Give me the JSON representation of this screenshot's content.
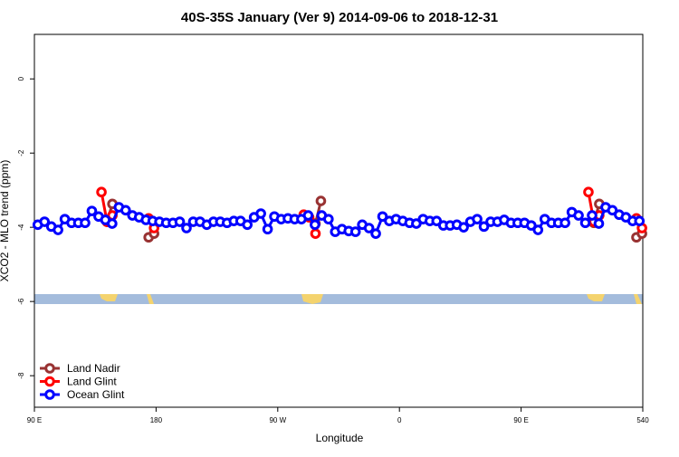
{
  "chart_data": {
    "type": "line",
    "title": "40S-35S January (Ver 9)   2014-09-06 to 2018-12-31",
    "x_label": "Longitude",
    "y_label": "XCO2 - MLO trend (ppm)",
    "xlim": [
      90,
      540
    ],
    "ylim": [
      -8.85,
      1.2
    ],
    "xticks": [
      {
        "value": 90,
        "label": "90 E"
      },
      180,
      {
        "value": 270,
        "label": "90 W"
      },
      {
        "value": 360,
        "label": "0"
      },
      {
        "value": 450,
        "label": "90 E"
      },
      540
    ],
    "yticks": [
      0,
      -2,
      -4,
      -6,
      -8
    ],
    "legend": "bottom-left",
    "series": [
      {
        "name": "Land Nadir",
        "color": "#993333",
        "x": [
          143.7,
          147.7,
          161,
          174.5,
          178.5,
          230,
          297.9,
          301.9,
          400,
          503.8,
          507.8,
          520,
          535.3,
          539.4
        ],
        "values": [
          -3.85,
          -3.37,
          null,
          -4.27,
          -4.17,
          null,
          -3.9,
          -3.29,
          null,
          -3.88,
          -3.37,
          null,
          -4.27,
          -4.17
        ]
      },
      {
        "name": "Land Glint",
        "color": "#ff0000",
        "x": [
          139.6,
          143.7,
          147.7,
          161,
          174.5,
          178.5,
          230,
          289.2,
          293.2,
          297.9,
          400,
          499.8,
          503.8,
          507.8,
          520,
          535.3,
          539.4
        ],
        "values": [
          -3.05,
          -3.85,
          -3.68,
          null,
          -3.76,
          -4.02,
          null,
          -3.66,
          -3.73,
          -4.17,
          null,
          -3.05,
          -3.85,
          -3.68,
          null,
          -3.76,
          -4.02
        ]
      },
      {
        "name": "Ocean Glint",
        "color": "#0000ff",
        "x": [
          92.5,
          97.5,
          102.5,
          107.5,
          112.5,
          117.5,
          122.5,
          127.5,
          132.5,
          137.5,
          142.5,
          147.5,
          152.5,
          157.5,
          162.5,
          167.5,
          172.5,
          177.5,
          182.5,
          187.5,
          192.5,
          197.5,
          202.5,
          207.5,
          212.5,
          217.5,
          222.5,
          227.5,
          232.5,
          237.5,
          242.5,
          247.5,
          252.5,
          257.5,
          262.5,
          267.5,
          272.5,
          277.5,
          282.5,
          287.5,
          292.5,
          297.5,
          302.5,
          307.5,
          312.5,
          317.5,
          322.5,
          327.5,
          332.5,
          337.5,
          342.5,
          347.5,
          352.5,
          357.5,
          362.5,
          367.5,
          372.5,
          377.5,
          382.5,
          387.5,
          392.5,
          397.5,
          402.5,
          407.5,
          412.5,
          417.5,
          422.5,
          427.5,
          432.5,
          437.5,
          442.5,
          447.5,
          452.5,
          457.5,
          462.5,
          467.5,
          472.5,
          477.5,
          482.5,
          487.5,
          492.5,
          497.5,
          502.5,
          507.5,
          512.5,
          517.5,
          522.5,
          527.5,
          532.5,
          537.5
        ],
        "values": [
          -3.93,
          -3.85,
          -3.98,
          -4.07,
          -3.78,
          -3.88,
          -3.88,
          -3.88,
          -3.56,
          -3.71,
          -3.8,
          -3.9,
          -3.46,
          -3.54,
          -3.68,
          -3.73,
          -3.8,
          -3.83,
          -3.85,
          -3.88,
          -3.88,
          -3.85,
          -4.02,
          -3.85,
          -3.85,
          -3.93,
          -3.85,
          -3.85,
          -3.88,
          -3.83,
          -3.83,
          -3.93,
          -3.73,
          -3.63,
          -4.05,
          -3.71,
          -3.78,
          -3.76,
          -3.78,
          -3.78,
          -3.68,
          -3.93,
          -3.68,
          -3.78,
          -4.12,
          -4.05,
          -4.1,
          -4.12,
          -3.93,
          -4.02,
          -4.17,
          -3.71,
          -3.83,
          -3.78,
          -3.83,
          -3.88,
          -3.9,
          -3.78,
          -3.83,
          -3.83,
          -3.95,
          -3.95,
          -3.93,
          -4.0,
          -3.85,
          -3.78,
          -3.98,
          -3.85,
          -3.85,
          -3.8,
          -3.88,
          -3.88,
          -3.88,
          -3.95,
          -4.07,
          -3.78,
          -3.88,
          -3.88,
          -3.88,
          -3.59,
          -3.68,
          -3.88,
          -3.68,
          -3.9,
          -3.46,
          -3.54,
          -3.66,
          -3.73,
          -3.83,
          -3.83
        ]
      }
    ]
  }
}
